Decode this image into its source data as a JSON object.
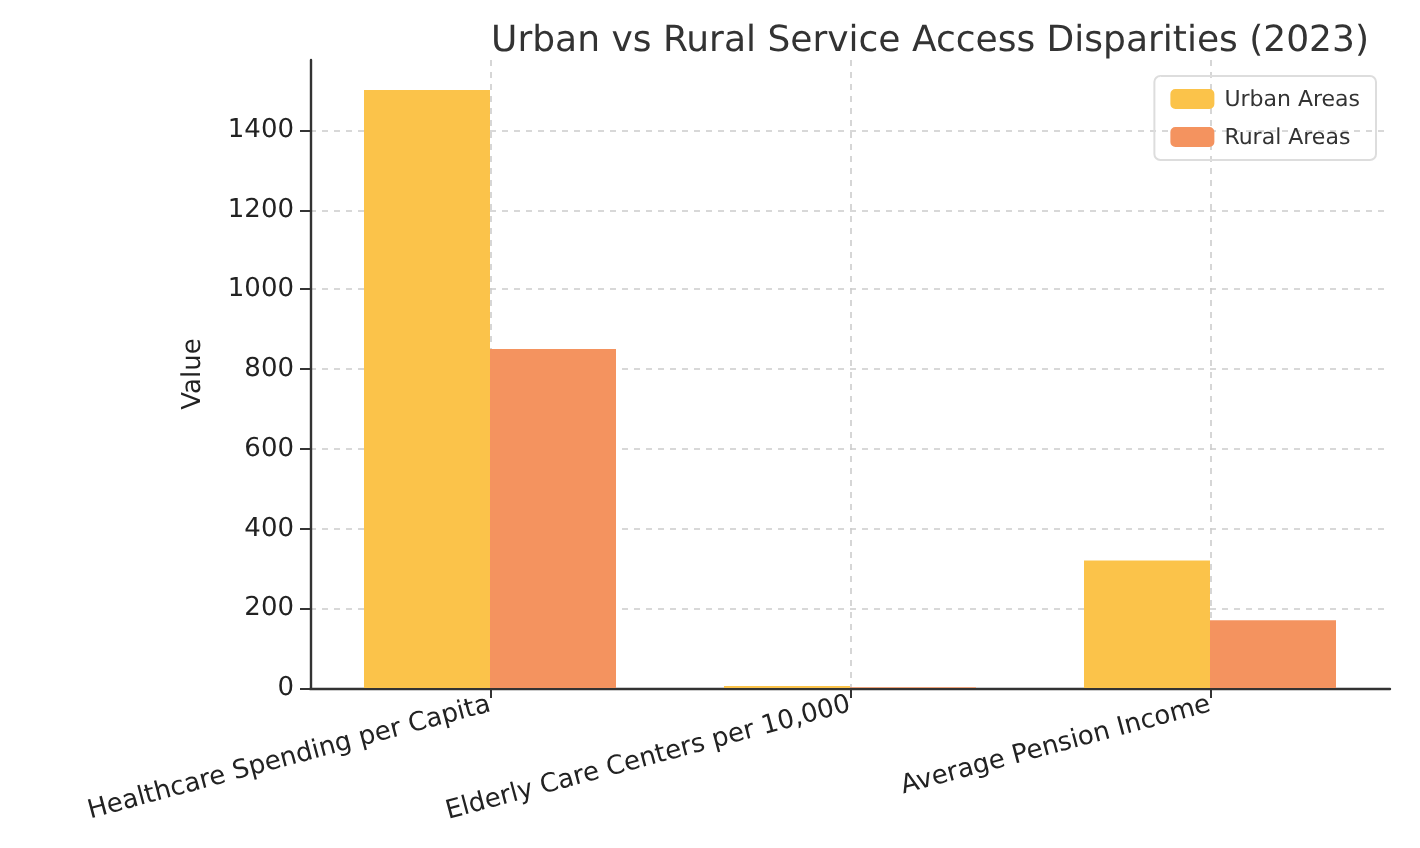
{
  "chart_data": {
    "type": "bar",
    "title": "Urban vs Rural Service Access Disparities (2023)",
    "ylabel": "Value",
    "categories": [
      "Healthcare Spending per Capita",
      "Elderly Care Centers per 10,000",
      "Average Pension Income"
    ],
    "series": [
      {
        "name": "Urban Areas",
        "color": "#fbc34a",
        "values": [
          1500,
          5,
          320
        ]
      },
      {
        "name": "Rural Areas",
        "color": "#f4935f",
        "values": [
          850,
          2,
          170
        ]
      }
    ],
    "ylim": [
      0,
      1575
    ],
    "yticks": [
      0,
      200,
      400,
      600,
      800,
      1000,
      1200,
      1400
    ],
    "grid": true,
    "legend": "top right"
  }
}
